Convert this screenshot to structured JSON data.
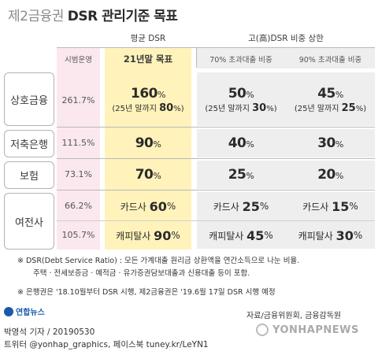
{
  "title": {
    "prefix": "제2금융권",
    "main": "DSR 관리기준 목표"
  },
  "header": {
    "avg_dsr": "평균 DSR",
    "high_dsr": "고(高)DSR 비중 상한",
    "pilot": "시범운영",
    "target_21": "21년말 목표",
    "over70": "70% 초과대출 비중",
    "over90": "90% 초과대출 비중"
  },
  "rows": [
    {
      "label": "상호금융",
      "pilot": "261.7%",
      "avg": "160",
      "avg_note_prefix": "(25년 말까지 ",
      "avg_note_val": "80",
      "h70": "50",
      "h70_note_val": "30",
      "h90": "45",
      "h90_note_val": "25",
      "pct": "%",
      "note_suffix": "%)"
    },
    {
      "label": "저축은행",
      "pilot": "111.5%",
      "avg": "90",
      "h70": "40",
      "h90": "30",
      "pct": "%"
    },
    {
      "label": "보험",
      "pilot": "73.1%",
      "avg": "70",
      "h70": "25",
      "h90": "20",
      "pct": "%"
    },
    {
      "label": "여전사",
      "sub": [
        {
          "pilot": "66.2%",
          "name": "카드사",
          "avg": "60",
          "h70": "25",
          "h90": "15"
        },
        {
          "pilot": "105.7%",
          "name": "캐피탈사",
          "avg": "90",
          "h70": "45",
          "h90": "30"
        }
      ],
      "pct": "%"
    }
  ],
  "notes": {
    "note1_line1": "※ DSR(Debt Service Ratio) : 모든 가계대출 원리금 상환액을 연간소득으로 나눈 비율.",
    "note1_line2": "주택 · 전세보증금 · 예적금 · 유가증권담보대출과 신용대출 등이 포함.",
    "note2": "※ 은행권은 '18.10월부터 DSR 시행, 제2금융권은 '19.6월 17일 DSR 시행 예정"
  },
  "logo": "연합뉴스",
  "source": "자료/금융위원회, 금융감독원",
  "byline": "박영석 기자 / 20190530",
  "social": "트위터 @yonhap_graphics, 페이스북 tuney.kr/LeYN1",
  "watermark": "YONHAPNEWS"
}
